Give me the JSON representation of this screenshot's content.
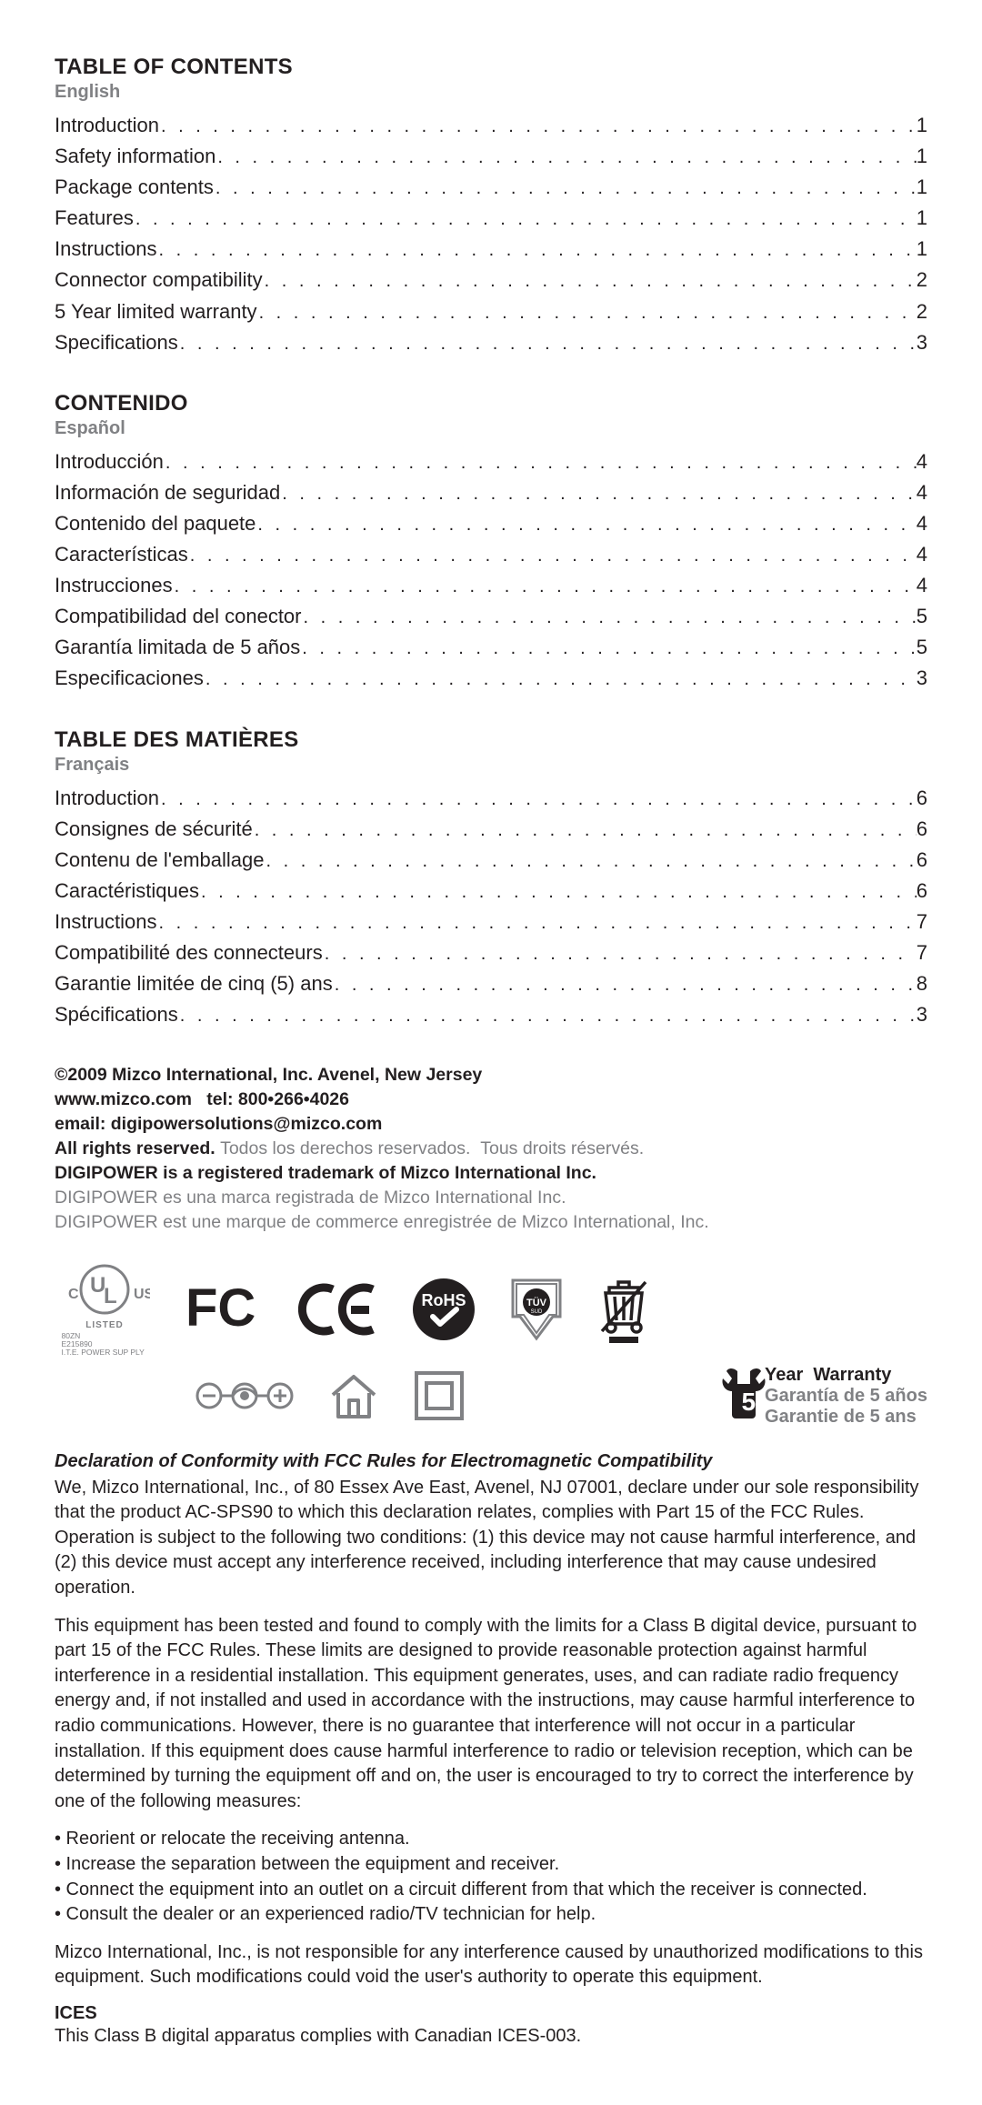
{
  "toc_en": {
    "title": "TABLE OF CONTENTS",
    "lang": "English",
    "items": [
      {
        "label": "Introduction",
        "page": "1"
      },
      {
        "label": "Safety information",
        "page": "1"
      },
      {
        "label": "Package contents",
        "page": "1"
      },
      {
        "label": "Features",
        "page": "1"
      },
      {
        "label": "Instructions",
        "page": "1"
      },
      {
        "label": "Connector compatibility",
        "page": "2"
      },
      {
        "label": "5 Year limited warranty",
        "page": "2"
      },
      {
        "label": "Specifications",
        "page": "3"
      }
    ]
  },
  "toc_es": {
    "title": "CONTENIDO",
    "lang": "Español",
    "items": [
      {
        "label": "Introducción",
        "page": "4"
      },
      {
        "label": "Información de seguridad",
        "page": "4"
      },
      {
        "label": "Contenido del paquete",
        "page": "4"
      },
      {
        "label": "Características",
        "page": "4"
      },
      {
        "label": "Instrucciones",
        "page": "4"
      },
      {
        "label": "Compatibilidad del conector",
        "page": "5"
      },
      {
        "label": "Garantía limitada de 5 años",
        "page": "5"
      },
      {
        "label": "Especificaciones",
        "page": "3"
      }
    ]
  },
  "toc_fr": {
    "title": "TABLE DES MATIÈRES",
    "lang": "Français",
    "items": [
      {
        "label": "Introduction",
        "page": "6"
      },
      {
        "label": "Consignes de sécurité",
        "page": "6"
      },
      {
        "label": "Contenu de l'emballage",
        "page": "6"
      },
      {
        "label": "Caractéristiques",
        "page": "6"
      },
      {
        "label": "Instructions",
        "page": "7"
      },
      {
        "label": "Compatibilité des connecteurs",
        "page": "7"
      },
      {
        "label": "Garantie limitée de cinq (5) ans",
        "page": "8"
      },
      {
        "label": "Spécifications",
        "page": "3"
      }
    ]
  },
  "copyright": {
    "line1": "©2009 Mizco International, Inc. Avenel, New Jersey",
    "line2": "www.mizco.com   tel: 800•266•4026",
    "line3": "email: digipowersolutions@mizco.com",
    "line4a": "All rights reserved. ",
    "line4b": "Todos los derechos reservados.  Tous droits réservés.",
    "line5": "DIGIPOWER is a registered trademark of Mizco International Inc.",
    "line6": "DIGIPOWER es una marca registrada de Mizco International Inc.",
    "line7": "DIGIPOWER est une marque de commerce enregistrée de Mizco International, Inc."
  },
  "ul_listing": {
    "listed": "LISTED",
    "code": "80ZN",
    "num": "E215890",
    "desc": "I.T.E. POWER SUP PLY"
  },
  "warranty_badge": {
    "num": "5",
    "line1": "Year  Warranty",
    "line2": "Garantía de 5 años",
    "line3": "Garantie de 5 ans"
  },
  "declaration": {
    "title": "Declaration of Conformity with FCC Rules for Electromagnetic Compatibility",
    "p1": "We, Mizco International, Inc., of 80 Essex Ave East, Avenel, NJ 07001, declare under our sole responsibility that the product AC-SPS90 to which this declaration relates, complies with Part 15 of the FCC Rules. Operation is subject to the following two conditions: (1) this device may not cause harmful interference, and (2) this device must accept any interference received, including interference that may cause undesired operation.",
    "p2": "This equipment has been tested and found to comply with the limits for a Class B digital device, pursuant to part 15 of the FCC Rules. These limits are designed to provide reasonable protection against harmful interference in a residential installation. This equipment generates, uses, and can radiate radio frequency energy and, if not installed and used in accordance with the instructions, may cause harmful interference to radio communications. However, there is no guarantee that interference will not occur in a particular installation. If this equipment does cause harmful interference to radio or television reception, which can be determined by turning the equipment off and on, the user is encouraged to try to correct the interference by one of the following measures:",
    "b1": "• Reorient or relocate the receiving antenna.",
    "b2": "• Increase the separation between the equipment and receiver.",
    "b3": "• Connect the equipment into an outlet on a circuit different from that which the receiver is connected.",
    "b4": "• Consult the dealer or an experienced radio/TV technician for help.",
    "p3": "Mizco International, Inc., is not responsible for any interference caused by unauthorized modifications to this equipment. Such modifications could void the user's authority to operate this equipment."
  },
  "ices": {
    "title": "ICES",
    "body": "This Class B digital apparatus complies with Canadian ICES-003."
  },
  "colors": {
    "text": "#231f20",
    "grey": "#808184",
    "bg": "#ffffff"
  }
}
